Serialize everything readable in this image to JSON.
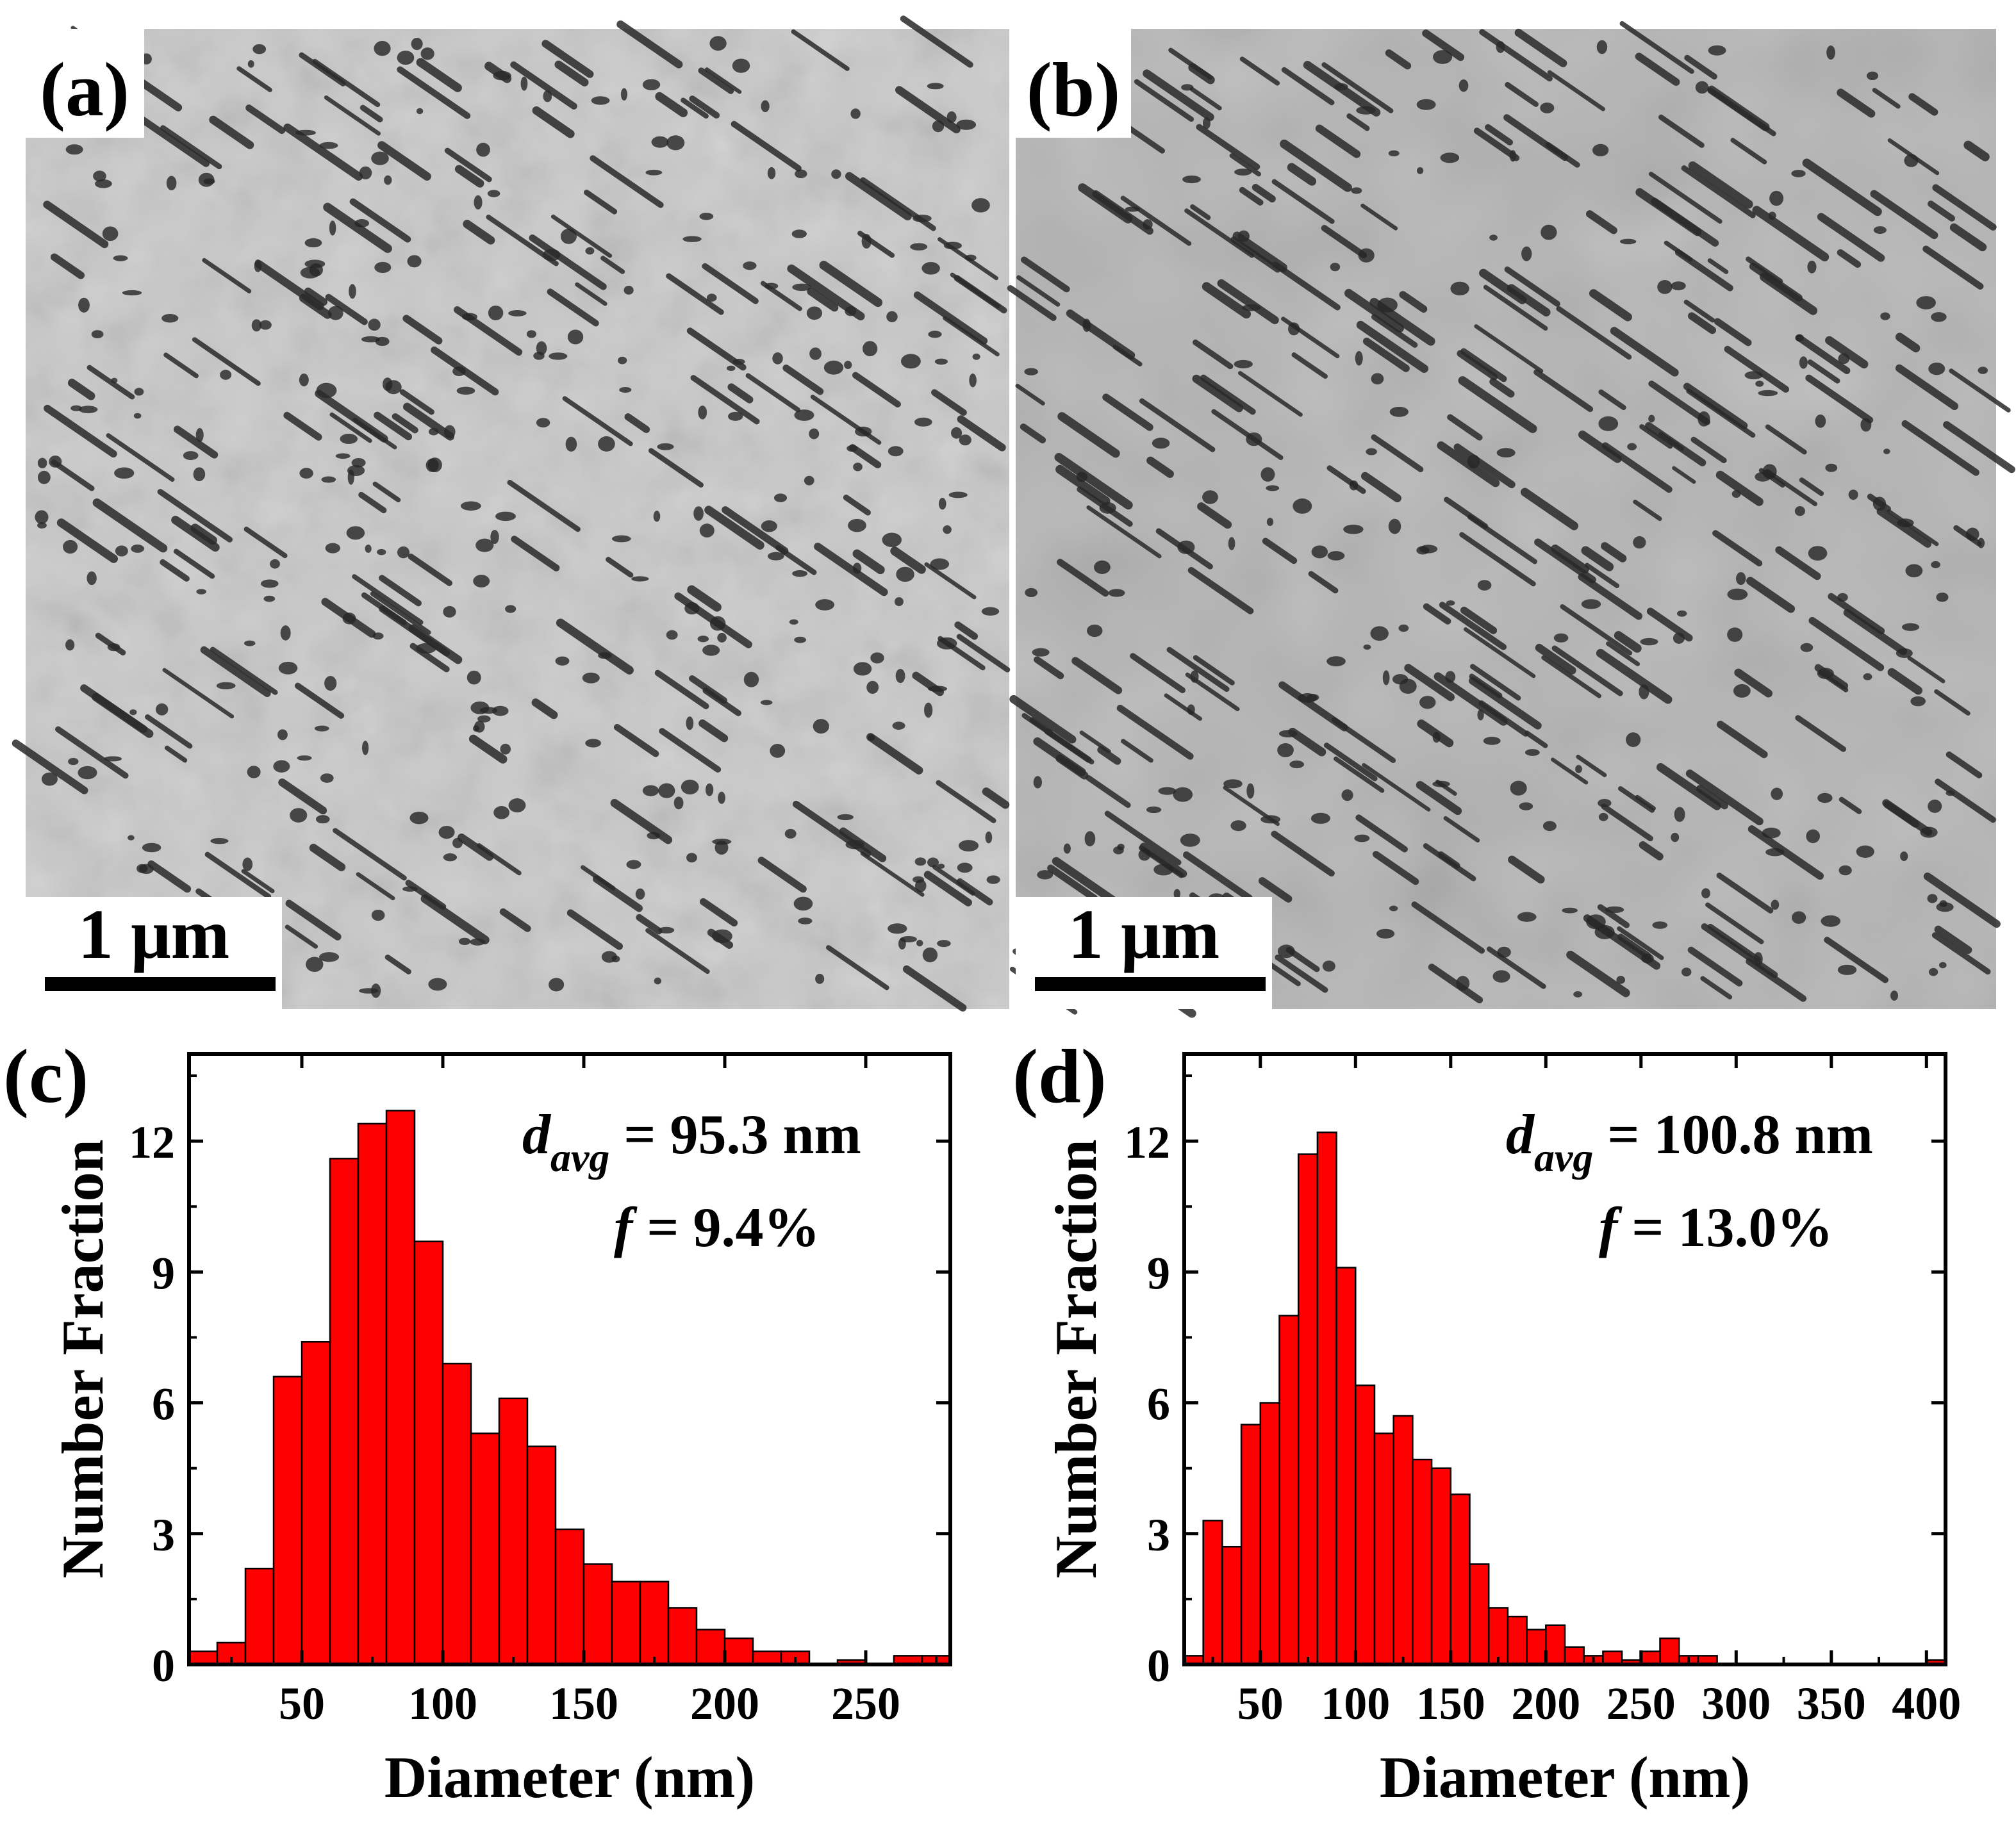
{
  "figure": {
    "panels": [
      {
        "id": "a",
        "label": "(a)",
        "kind": "tem-micrograph",
        "scale_bar": "1 μm"
      },
      {
        "id": "b",
        "label": "(b)",
        "kind": "tem-micrograph",
        "scale_bar": "1 μm"
      },
      {
        "id": "c",
        "label": "(c)",
        "kind": "histogram"
      },
      {
        "id": "d",
        "label": "(d)",
        "kind": "histogram"
      }
    ]
  },
  "colors": {
    "bar_fill": "#ff0000",
    "bar_edge": "#000000",
    "axis": "#000000"
  },
  "chart_data": [
    {
      "panel": "c",
      "type": "bar",
      "xlabel": "Diameter (nm)",
      "ylabel": "Number Fraction",
      "xlim": [
        10,
        280
      ],
      "ylim": [
        0,
        14
      ],
      "xticks": [
        50,
        100,
        150,
        200,
        250
      ],
      "yticks": [
        0,
        3,
        6,
        9,
        12
      ],
      "bin_width": 10,
      "bin_centers": [
        15,
        25,
        35,
        45,
        55,
        65,
        75,
        85,
        95,
        105,
        115,
        125,
        135,
        145,
        155,
        165,
        175,
        185,
        195,
        205,
        215,
        225,
        235,
        245,
        255,
        265,
        275
      ],
      "values": [
        0.3,
        0.5,
        2.2,
        6.6,
        7.4,
        11.6,
        12.4,
        12.7,
        9.7,
        6.9,
        5.3,
        6.1,
        5.0,
        3.1,
        2.3,
        1.9,
        1.9,
        1.3,
        0.8,
        0.6,
        0.3,
        0.3,
        0.0,
        0.1,
        0.0,
        0.2,
        0.2
      ],
      "annotations": {
        "d_label": "d",
        "d_sub": "avg",
        "d_value": " = 95.3 nm",
        "f_label": "f",
        "f_value": " = 9.4%"
      }
    },
    {
      "panel": "d",
      "type": "bar",
      "xlabel": "Diameter (nm)",
      "ylabel": "Number Fraction",
      "xlim": [
        10,
        410
      ],
      "ylim": [
        0,
        14
      ],
      "xticks": [
        50,
        100,
        150,
        200,
        250,
        300,
        350,
        400
      ],
      "yticks": [
        0,
        3,
        6,
        9,
        12
      ],
      "bin_width": 10,
      "bin_centers": [
        15,
        25,
        35,
        45,
        55,
        65,
        75,
        85,
        95,
        105,
        115,
        125,
        135,
        145,
        155,
        165,
        175,
        185,
        195,
        205,
        215,
        225,
        235,
        245,
        255,
        265,
        275,
        285,
        295,
        305,
        315,
        325,
        335,
        345,
        355,
        365,
        375,
        385,
        395,
        405
      ],
      "values": [
        0.2,
        3.3,
        2.7,
        5.5,
        6.0,
        8.0,
        11.7,
        12.2,
        9.1,
        6.4,
        5.3,
        5.7,
        4.7,
        4.5,
        3.9,
        2.3,
        1.3,
        1.1,
        0.8,
        0.9,
        0.4,
        0.2,
        0.3,
        0.1,
        0.3,
        0.6,
        0.2,
        0.2,
        0.0,
        0.0,
        0.0,
        0.0,
        0.0,
        0.0,
        0.0,
        0.0,
        0.0,
        0.0,
        0.0,
        0.1
      ],
      "annotations": {
        "d_label": "d",
        "d_sub": "avg",
        "d_value": " = 100.8 nm",
        "f_label": "f",
        "f_value": " = 13.0%"
      }
    }
  ]
}
